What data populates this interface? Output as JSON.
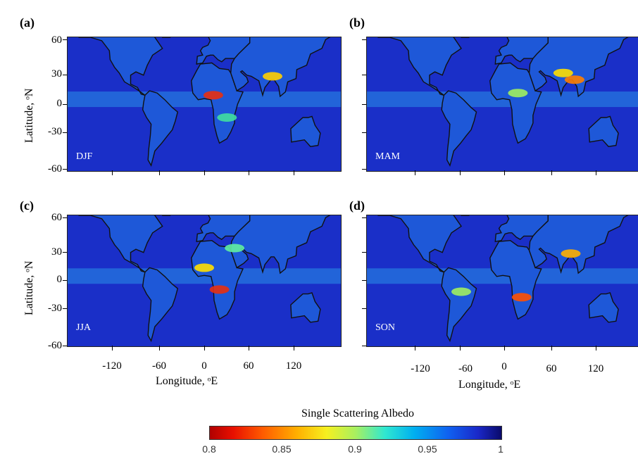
{
  "panels": [
    {
      "letter": "(a)",
      "season": "DJF"
    },
    {
      "letter": "(b)",
      "season": "MAM"
    },
    {
      "letter": "(c)",
      "season": "JJA"
    },
    {
      "letter": "(d)",
      "season": "SON"
    }
  ],
  "y_axis": {
    "title": "Latitude, ᵒN",
    "ticks": [
      "60",
      "30",
      "0",
      "-30",
      "-60"
    ]
  },
  "x_axis": {
    "title": "Longitude, ᵒE",
    "ticks": [
      "-120",
      "-60",
      "0",
      "60",
      "120"
    ]
  },
  "colorbar": {
    "title": "Single Scattering Albedo",
    "labels": [
      "0.8",
      "0.85",
      "0.9",
      "0.95",
      "1"
    ],
    "range": [
      0.8,
      1
    ],
    "colormap": "jet-reversed"
  },
  "colors": {
    "ocean": "#1a2fc8",
    "land_outline": "#111111",
    "low_ssa": "#d01010",
    "high_ssa": "#0a0a7a"
  }
}
